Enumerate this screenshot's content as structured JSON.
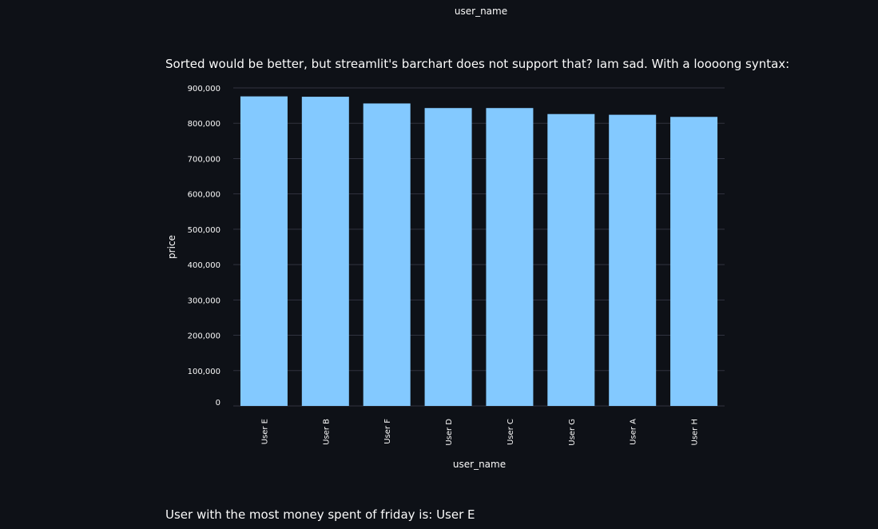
{
  "previous_chart": {
    "xlabel": "user_name"
  },
  "caption": "Sorted would be better, but streamlit's barchart does not support that? Iam sad. With a loooong syntax:",
  "result_text": "User with the most money spent of friday is: User E",
  "colors": {
    "background": "#0e1117",
    "bar": "#83c9ff",
    "grid": "#31333f",
    "text": "#fafafa"
  },
  "chart_data": {
    "type": "bar",
    "categories": [
      "User E",
      "User B",
      "User F",
      "User D",
      "User C",
      "User G",
      "User A",
      "User H"
    ],
    "values": [
      876000,
      875000,
      856000,
      843000,
      843000,
      826000,
      824000,
      818000
    ],
    "ylim": [
      0,
      900000
    ],
    "yticks": [
      0,
      100000,
      200000,
      300000,
      400000,
      500000,
      600000,
      700000,
      800000,
      900000
    ],
    "ytick_labels": [
      "0",
      "100,000",
      "200,000",
      "300,000",
      "400,000",
      "500,000",
      "600,000",
      "700,000",
      "800,000",
      "900,000"
    ],
    "xlabel": "user_name",
    "ylabel": "price",
    "grid": true
  }
}
